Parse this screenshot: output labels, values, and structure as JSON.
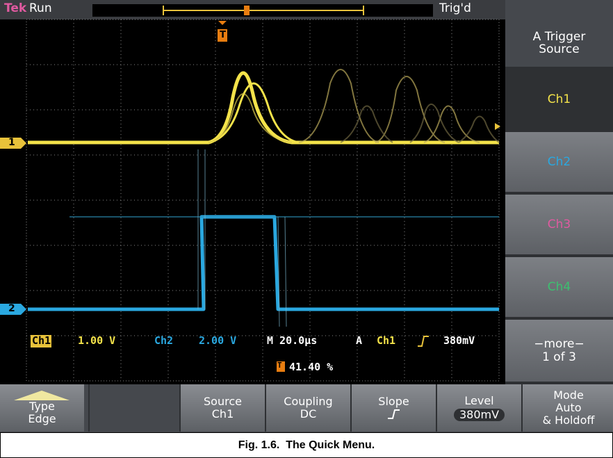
{
  "status": {
    "brand": "Tek",
    "state": "Run",
    "trigger": "Trig'd"
  },
  "side_menu": {
    "title": "A Trigger Source",
    "items": [
      "Ch1",
      "Ch2",
      "Ch3",
      "Ch4"
    ],
    "more": [
      "−more−",
      "1 of 3"
    ]
  },
  "markers": {
    "trigger": "T",
    "ch1": "1",
    "ch2": "2"
  },
  "readout": {
    "ch1": "Ch1",
    "ch1_scale": "1.00 V",
    "ch2": "Ch2",
    "ch2_scale": "2.00 V",
    "timebase": "M 20.0µs",
    "trigger_type": "A",
    "trigger_source": "Ch1",
    "trigger_level": "380mV",
    "position": "41.40 %"
  },
  "bottom_menu": [
    {
      "label": "Type",
      "value": "Edge"
    },
    {
      "label": "Source",
      "value": "Ch1"
    },
    {
      "label": "Coupling",
      "value": "DC"
    },
    {
      "label": "Slope"
    },
    {
      "label": "Level",
      "value": "380mV"
    },
    {
      "label": "Mode",
      "value": [
        "Auto",
        "& Holdoff"
      ]
    }
  ],
  "caption": "Fig. 1.6.  The Quick Menu."
}
